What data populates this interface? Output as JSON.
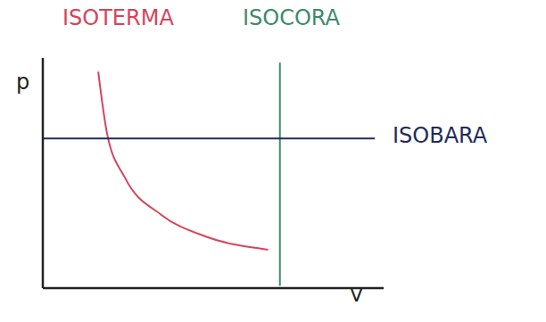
{
  "chart_data": {
    "type": "line",
    "x_label": "V",
    "y_label": "p",
    "xlim": [
      0,
      11.5
    ],
    "ylim": [
      0,
      10
    ],
    "tick_labels": false,
    "grid": false,
    "series": [
      {
        "name": "ISOTERMA",
        "color": "#d6455a",
        "type": "line",
        "x": [
          1.87,
          2.17,
          2.77,
          3.98,
          5.48,
          7.6
        ],
        "values": [
          9.4,
          6.7,
          4.8,
          3.2,
          2.25,
          1.67
        ]
      },
      {
        "name": "ISOCORA",
        "color": "#3f8a6c",
        "type": "line",
        "x": [
          8.0,
          8.0
        ],
        "values": [
          0.1,
          9.8
        ]
      },
      {
        "name": "ISOBARA",
        "color": "#1f2c5c",
        "type": "line",
        "x": [
          0.0,
          11.2
        ],
        "values": [
          6.5,
          6.5
        ]
      }
    ]
  }
}
